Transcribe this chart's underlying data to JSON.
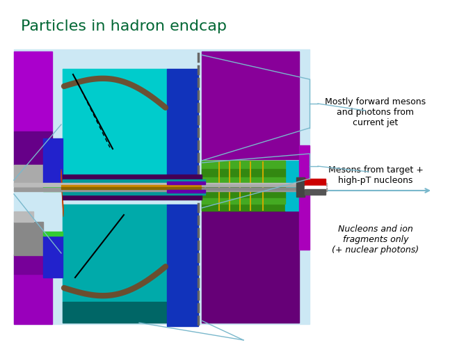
{
  "title": "Particles in hadron endcap",
  "title_color": "#006633",
  "title_fontsize": 16,
  "bg_color": "#cce8f4",
  "labels": [
    "Mostly forward mesons\nand photons from\ncurrent jet",
    "Mesons from target +\nhigh-pT nucleons",
    "Nucleons and ion\nfragments only\n(+ nuclear photons)"
  ],
  "label_color": "#000000",
  "label_fontsize": 9,
  "arrow_color": "#7ab8cc"
}
